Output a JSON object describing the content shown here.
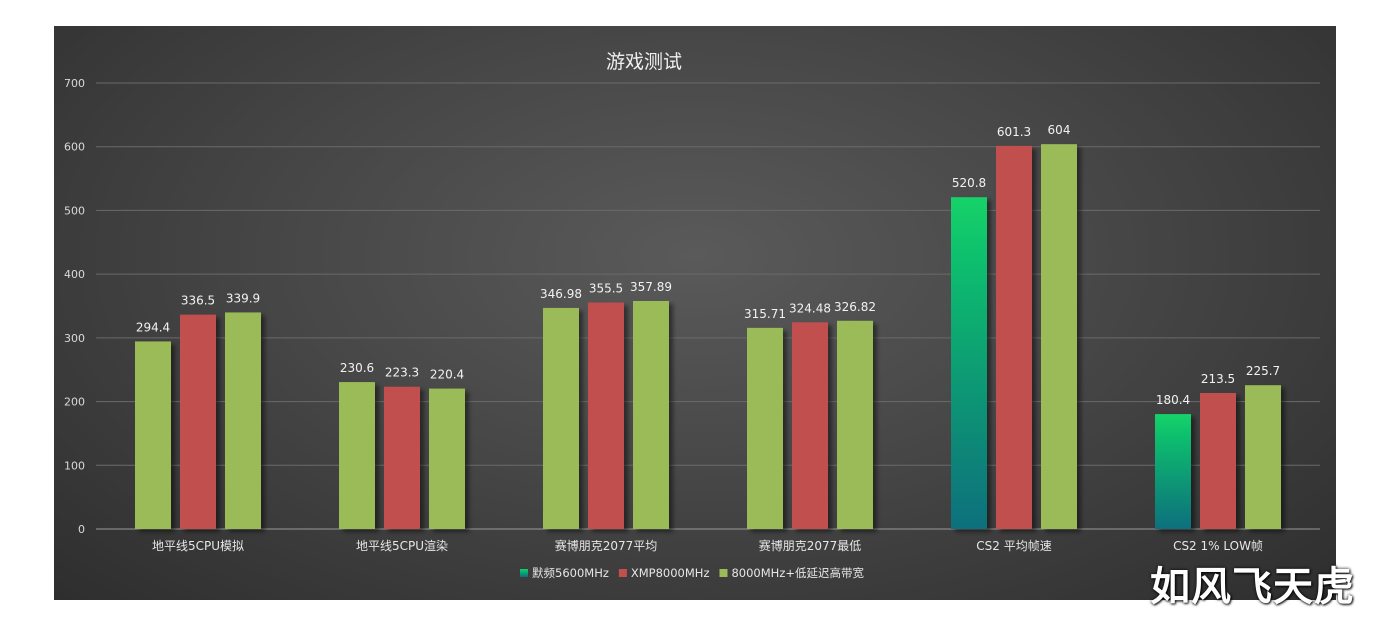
{
  "watermark": "如风飞天虎",
  "chart_data": {
    "type": "bar",
    "title": "游戏测试",
    "xlabel": "",
    "ylabel": "",
    "ylim": [
      0,
      700
    ],
    "yticks": [
      0,
      100,
      200,
      300,
      400,
      500,
      600,
      700
    ],
    "grid": true,
    "legend_position": "bottom",
    "categories": [
      "地平线5CPU模拟",
      "地平线5CPU渲染",
      "赛博朋克2077平均",
      "赛博朋克2077最低",
      "CS2 平均帧速",
      "CS2 1% LOW帧"
    ],
    "bar_colors": [
      "#9bbb59",
      "#9bbb59",
      "#9bbb59",
      "#9bbb59",
      "gradient",
      "gradient"
    ],
    "series": [
      {
        "name": "默频5600MHz",
        "color": "#1ecb6e",
        "values": [
          294.4,
          230.6,
          346.98,
          315.71,
          520.8,
          180.4
        ],
        "labels": [
          "294.4",
          "230.6",
          "346.98",
          "315.71",
          "520.8",
          "180.4"
        ]
      },
      {
        "name": "XMP8000MHz",
        "color": "#c0504d",
        "values": [
          336.5,
          223.3,
          355.5,
          324.48,
          601.3,
          213.5
        ],
        "labels": [
          "336.5",
          "223.3",
          "355.5",
          "324.48",
          "601.3",
          "213.5"
        ]
      },
      {
        "name": "8000MHz+低延迟高带宽",
        "color": "#9bbb59",
        "values": [
          339.9,
          220.4,
          357.89,
          326.82,
          604,
          225.7
        ],
        "labels": [
          "339.9",
          "220.4",
          "357.89",
          "326.82",
          "604",
          "225.7"
        ]
      }
    ]
  }
}
